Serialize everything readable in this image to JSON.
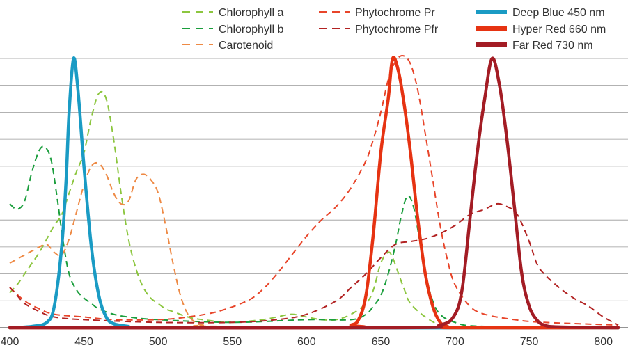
{
  "chart_data": {
    "type": "line",
    "title": "",
    "xlabel": "",
    "ylabel": "",
    "xlim": [
      400,
      810
    ],
    "ylim": [
      0,
      100
    ],
    "x_ticks": [
      400,
      450,
      500,
      550,
      600,
      650,
      700,
      750,
      800
    ],
    "y_gridlines": [
      0,
      10,
      20,
      30,
      40,
      50,
      60,
      70,
      80,
      90,
      100
    ],
    "y_tick_labels_shown": false,
    "legend_position": "top-right",
    "series": [
      {
        "name": "Chlorophyll a",
        "style": "dashed",
        "color": "#8cc63f",
        "points": [
          [
            400,
            13
          ],
          [
            405,
            16
          ],
          [
            410,
            20
          ],
          [
            415,
            24
          ],
          [
            420,
            28
          ],
          [
            425,
            33
          ],
          [
            430,
            38
          ],
          [
            435,
            42
          ],
          [
            440,
            50
          ],
          [
            445,
            58
          ],
          [
            450,
            65
          ],
          [
            455,
            78
          ],
          [
            460,
            87
          ],
          [
            465,
            85
          ],
          [
            470,
            70
          ],
          [
            475,
            50
          ],
          [
            480,
            33
          ],
          [
            485,
            22
          ],
          [
            490,
            15
          ],
          [
            495,
            11
          ],
          [
            500,
            9
          ],
          [
            505,
            7
          ],
          [
            510,
            6
          ],
          [
            520,
            4
          ],
          [
            530,
            3
          ],
          [
            550,
            2
          ],
          [
            570,
            3
          ],
          [
            580,
            4
          ],
          [
            590,
            5
          ],
          [
            600,
            4
          ],
          [
            610,
            3
          ],
          [
            620,
            3
          ],
          [
            630,
            5
          ],
          [
            640,
            9
          ],
          [
            645,
            14
          ],
          [
            650,
            24
          ],
          [
            655,
            28
          ],
          [
            658,
            26
          ],
          [
            662,
            20
          ],
          [
            666,
            14
          ],
          [
            670,
            9
          ],
          [
            680,
            4
          ],
          [
            690,
            1
          ],
          [
            700,
            0.5
          ],
          [
            810,
            0
          ]
        ]
      },
      {
        "name": "Chlorophyll b",
        "style": "dashed",
        "color": "#1a9e3c",
        "points": [
          [
            400,
            46
          ],
          [
            405,
            44
          ],
          [
            410,
            47
          ],
          [
            415,
            58
          ],
          [
            420,
            66
          ],
          [
            424,
            67
          ],
          [
            428,
            62
          ],
          [
            432,
            48
          ],
          [
            436,
            32
          ],
          [
            440,
            20
          ],
          [
            445,
            14
          ],
          [
            450,
            11
          ],
          [
            455,
            9
          ],
          [
            460,
            7
          ],
          [
            470,
            5
          ],
          [
            480,
            4
          ],
          [
            500,
            3
          ],
          [
            550,
            2
          ],
          [
            600,
            3
          ],
          [
            630,
            3
          ],
          [
            640,
            5
          ],
          [
            645,
            8
          ],
          [
            650,
            12
          ],
          [
            655,
            20
          ],
          [
            660,
            31
          ],
          [
            664,
            42
          ],
          [
            668,
            49
          ],
          [
            672,
            45
          ],
          [
            676,
            33
          ],
          [
            680,
            20
          ],
          [
            685,
            10
          ],
          [
            690,
            5
          ],
          [
            700,
            2
          ],
          [
            720,
            0.5
          ],
          [
            810,
            0
          ]
        ]
      },
      {
        "name": "Carotenoid",
        "style": "dashed",
        "color": "#ee8a45",
        "points": [
          [
            400,
            24
          ],
          [
            410,
            27
          ],
          [
            420,
            30
          ],
          [
            425,
            31
          ],
          [
            430,
            28
          ],
          [
            435,
            27
          ],
          [
            440,
            33
          ],
          [
            445,
            43
          ],
          [
            450,
            53
          ],
          [
            455,
            60
          ],
          [
            460,
            61
          ],
          [
            465,
            57
          ],
          [
            470,
            50
          ],
          [
            475,
            46
          ],
          [
            480,
            47
          ],
          [
            485,
            55
          ],
          [
            490,
            57
          ],
          [
            495,
            55
          ],
          [
            500,
            50
          ],
          [
            505,
            38
          ],
          [
            510,
            24
          ],
          [
            515,
            12
          ],
          [
            520,
            5
          ],
          [
            525,
            2
          ],
          [
            530,
            1
          ],
          [
            550,
            0.5
          ],
          [
            810,
            0
          ]
        ]
      },
      {
        "name": "Phytochrome Pr",
        "style": "dashed",
        "color": "#e8452a",
        "points": [
          [
            400,
            15
          ],
          [
            410,
            10
          ],
          [
            420,
            7
          ],
          [
            430,
            5
          ],
          [
            450,
            4
          ],
          [
            470,
            3
          ],
          [
            500,
            3
          ],
          [
            520,
            4
          ],
          [
            540,
            6
          ],
          [
            560,
            10
          ],
          [
            570,
            14
          ],
          [
            580,
            20
          ],
          [
            590,
            27
          ],
          [
            600,
            34
          ],
          [
            610,
            40
          ],
          [
            620,
            45
          ],
          [
            630,
            52
          ],
          [
            640,
            62
          ],
          [
            645,
            70
          ],
          [
            650,
            80
          ],
          [
            655,
            92
          ],
          [
            660,
            99
          ],
          [
            665,
            101
          ],
          [
            670,
            98
          ],
          [
            675,
            88
          ],
          [
            680,
            72
          ],
          [
            685,
            55
          ],
          [
            690,
            38
          ],
          [
            695,
            25
          ],
          [
            700,
            16
          ],
          [
            710,
            8
          ],
          [
            720,
            5
          ],
          [
            740,
            3
          ],
          [
            760,
            2
          ],
          [
            810,
            1
          ]
        ]
      },
      {
        "name": "Phytochrome Pfr",
        "style": "dashed",
        "color": "#b22222",
        "points": [
          [
            400,
            15
          ],
          [
            405,
            12
          ],
          [
            410,
            9
          ],
          [
            420,
            6
          ],
          [
            430,
            4
          ],
          [
            450,
            3
          ],
          [
            500,
            2
          ],
          [
            550,
            2
          ],
          [
            580,
            3
          ],
          [
            600,
            5
          ],
          [
            620,
            10
          ],
          [
            630,
            15
          ],
          [
            640,
            20
          ],
          [
            650,
            26
          ],
          [
            660,
            31
          ],
          [
            670,
            32
          ],
          [
            680,
            33
          ],
          [
            690,
            35
          ],
          [
            700,
            38
          ],
          [
            710,
            42
          ],
          [
            720,
            44
          ],
          [
            728,
            46
          ],
          [
            735,
            45
          ],
          [
            742,
            42
          ],
          [
            750,
            32
          ],
          [
            755,
            24
          ],
          [
            760,
            20
          ],
          [
            770,
            15
          ],
          [
            780,
            11
          ],
          [
            790,
            8
          ],
          [
            800,
            4
          ],
          [
            810,
            1
          ]
        ]
      },
      {
        "name": "Deep Blue 450 nm",
        "style": "solid",
        "color": "#1a9bc4",
        "points": [
          [
            400,
            0
          ],
          [
            415,
            0.5
          ],
          [
            425,
            2
          ],
          [
            430,
            8
          ],
          [
            435,
            30
          ],
          [
            438,
            55
          ],
          [
            440,
            80
          ],
          [
            443,
            100
          ],
          [
            446,
            88
          ],
          [
            450,
            60
          ],
          [
            455,
            30
          ],
          [
            460,
            12
          ],
          [
            465,
            4
          ],
          [
            470,
            1.5
          ],
          [
            480,
            0.5
          ],
          [
            490,
            0
          ],
          [
            810,
            0
          ]
        ]
      },
      {
        "name": "Hyper Red 660 nm",
        "style": "solid",
        "color": "#e63312",
        "points": [
          [
            400,
            0
          ],
          [
            620,
            0
          ],
          [
            630,
            1
          ],
          [
            635,
            3
          ],
          [
            640,
            12
          ],
          [
            645,
            35
          ],
          [
            650,
            65
          ],
          [
            655,
            85
          ],
          [
            658,
            100
          ],
          [
            662,
            95
          ],
          [
            666,
            82
          ],
          [
            670,
            65
          ],
          [
            675,
            40
          ],
          [
            680,
            20
          ],
          [
            685,
            8
          ],
          [
            690,
            2
          ],
          [
            695,
            0.5
          ],
          [
            700,
            0
          ],
          [
            810,
            0
          ]
        ]
      },
      {
        "name": "Far Red 730 nm",
        "style": "solid",
        "color": "#a31c24",
        "points": [
          [
            400,
            0
          ],
          [
            660,
            0
          ],
          [
            690,
            1
          ],
          [
            700,
            5
          ],
          [
            705,
            15
          ],
          [
            710,
            40
          ],
          [
            715,
            65
          ],
          [
            720,
            85
          ],
          [
            725,
            100
          ],
          [
            730,
            90
          ],
          [
            735,
            70
          ],
          [
            740,
            45
          ],
          [
            745,
            20
          ],
          [
            750,
            8
          ],
          [
            755,
            3
          ],
          [
            760,
            1
          ],
          [
            770,
            0.3
          ],
          [
            810,
            0
          ]
        ]
      }
    ]
  }
}
